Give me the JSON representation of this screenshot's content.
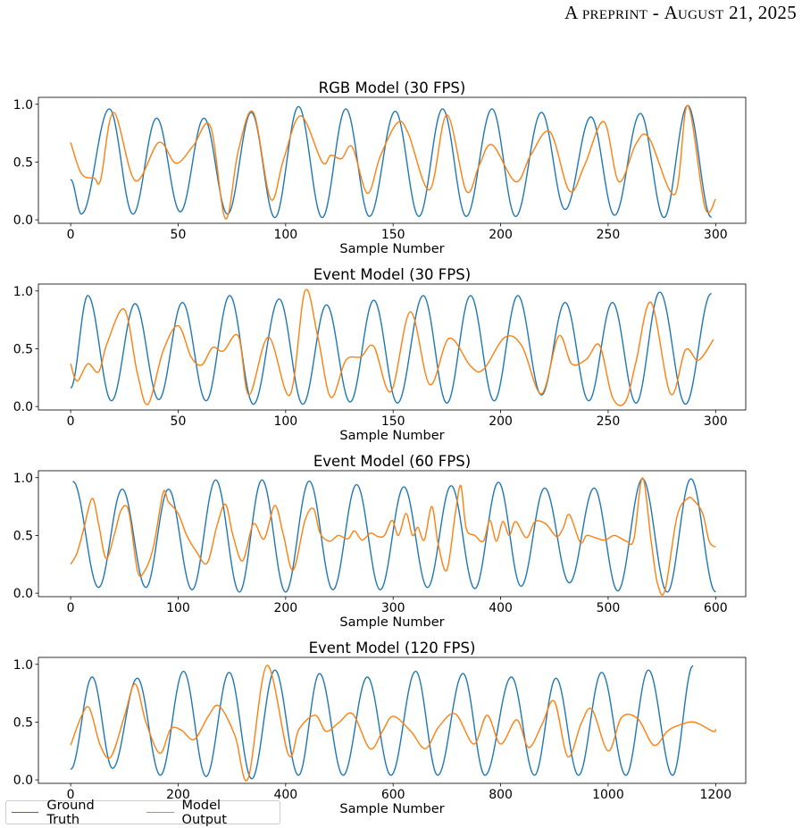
{
  "header": {
    "prefix": "A preprint",
    "separator": " - ",
    "date": "August 21, 2025"
  },
  "colors": {
    "ground_truth": "#1f77b4",
    "model_output": "#ff7f0e"
  },
  "legend": [
    {
      "name": "Ground Truth",
      "color": "#1f77b4"
    },
    {
      "name": "Model Output",
      "color": "#ff7f0e"
    }
  ],
  "chart_data": [
    {
      "type": "line",
      "title": "RGB Model (30 FPS)",
      "xlabel": "Sample Number",
      "xlim": [
        -15,
        314
      ],
      "ylim": [
        -0.03,
        1.06
      ],
      "xticks": [
        0,
        50,
        100,
        150,
        200,
        250,
        300
      ],
      "yticks": [
        0.0,
        0.5,
        1.0
      ],
      "series": [
        {
          "name": "Ground Truth",
          "peaks_x": [
            0,
            18,
            40,
            62,
            84,
            106,
            128,
            151,
            173,
            196,
            219,
            242,
            265,
            287
          ],
          "peaks_y": [
            0.35,
            0.96,
            0.88,
            0.88,
            0.93,
            0.98,
            0.96,
            0.94,
            0.96,
            0.96,
            0.93,
            0.89,
            0.92,
            0.99
          ],
          "troughs_x": [
            5,
            29,
            51,
            73,
            95,
            117,
            139,
            162,
            184,
            207,
            230,
            253,
            276,
            298
          ],
          "troughs_y": [
            0.05,
            0.05,
            0.07,
            0.05,
            0.02,
            0.02,
            0.03,
            0.03,
            0.03,
            0.03,
            0.09,
            0.04,
            0.02,
            0.02
          ]
        },
        {
          "name": "Model Output",
          "x": [
            0,
            5,
            11,
            14,
            20,
            30,
            41,
            49,
            57,
            65,
            72,
            78,
            85,
            93,
            99,
            107,
            117,
            121,
            126,
            131,
            138,
            144,
            152,
            157,
            167,
            175,
            184,
            190,
            196,
            207,
            214,
            223,
            232,
            239,
            248,
            255,
            263,
            269,
            281,
            287,
            295,
            300
          ],
          "y": [
            0.67,
            0.4,
            0.36,
            0.35,
            0.93,
            0.34,
            0.67,
            0.49,
            0.64,
            0.81,
            0.01,
            0.6,
            0.93,
            0.18,
            0.52,
            0.9,
            0.5,
            0.56,
            0.53,
            0.63,
            0.23,
            0.55,
            0.84,
            0.75,
            0.26,
            0.91,
            0.25,
            0.47,
            0.65,
            0.33,
            0.56,
            0.76,
            0.25,
            0.47,
            0.85,
            0.33,
            0.66,
            0.71,
            0.22,
            0.99,
            0.11,
            0.18
          ]
        }
      ]
    },
    {
      "type": "line",
      "title": "Event Model (30 FPS)",
      "xlabel": "Sample Number",
      "xlim": [
        -15,
        314
      ],
      "ylim": [
        -0.03,
        1.06
      ],
      "xticks": [
        0,
        50,
        100,
        150,
        200,
        250,
        300
      ],
      "yticks": [
        0.0,
        0.5,
        1.0
      ],
      "series": [
        {
          "name": "Ground Truth",
          "peaks_x": [
            8,
            30,
            52,
            74,
            97,
            119,
            141,
            164,
            186,
            208,
            230,
            252,
            274,
            298
          ],
          "peaks_y": [
            0.96,
            0.89,
            0.9,
            0.96,
            0.93,
            0.88,
            0.92,
            0.96,
            0.96,
            0.96,
            0.9,
            0.9,
            0.99,
            0.98
          ],
          "troughs_x": [
            0,
            19,
            41,
            63,
            85,
            108,
            130,
            152,
            175,
            197,
            219,
            241,
            263,
            286
          ],
          "troughs_y": [
            0.16,
            0.05,
            0.06,
            0.05,
            0.02,
            0.02,
            0.04,
            0.03,
            0.03,
            0.05,
            0.1,
            0.05,
            0.03,
            0.02
          ]
        },
        {
          "name": "Model Output",
          "x": [
            0,
            3,
            8,
            13,
            17,
            25,
            31,
            36,
            43,
            50,
            56,
            61,
            66,
            71,
            78,
            83,
            92,
            102,
            109,
            115,
            121,
            128,
            135,
            141,
            149,
            158,
            167,
            176,
            186,
            192,
            202,
            210,
            219,
            227,
            233,
            240,
            246,
            252,
            258,
            263,
            270,
            279,
            286,
            292,
            299
          ],
          "y": [
            0.37,
            0.22,
            0.37,
            0.3,
            0.55,
            0.84,
            0.29,
            0.02,
            0.48,
            0.7,
            0.43,
            0.36,
            0.51,
            0.48,
            0.61,
            0.1,
            0.6,
            0.1,
            1.0,
            0.6,
            0.08,
            0.4,
            0.43,
            0.52,
            0.13,
            0.82,
            0.19,
            0.59,
            0.35,
            0.32,
            0.6,
            0.52,
            0.11,
            0.61,
            0.37,
            0.41,
            0.53,
            0.08,
            0.04,
            0.39,
            0.9,
            0.11,
            0.49,
            0.4,
            0.58
          ]
        }
      ]
    },
    {
      "type": "line",
      "title": "Event Model (60 FPS)",
      "xlabel": "Sample Number",
      "xlim": [
        -30,
        628
      ],
      "ylim": [
        -0.03,
        1.06
      ],
      "xticks": [
        0,
        100,
        200,
        300,
        400,
        500,
        600
      ],
      "yticks": [
        0.0,
        0.5,
        1.0
      ],
      "series": [
        {
          "name": "Ground Truth",
          "peaks_x": [
            2,
            48,
            91,
            135,
            178,
            222,
            266,
            310,
            354,
            398,
            441,
            487,
            532,
            577
          ],
          "peaks_y": [
            0.97,
            0.9,
            0.9,
            0.98,
            0.98,
            0.97,
            0.94,
            0.92,
            0.93,
            0.96,
            0.91,
            0.91,
            0.99,
            0.99
          ],
          "troughs_x": [
            26,
            70,
            113,
            157,
            200,
            244,
            288,
            332,
            376,
            419,
            464,
            509,
            555,
            600
          ],
          "troughs_y": [
            0.05,
            0.05,
            0.03,
            0.01,
            0.01,
            0.03,
            0.03,
            0.05,
            0.04,
            0.06,
            0.09,
            0.02,
            0.01,
            0.01
          ]
        },
        {
          "name": "Model Output",
          "x": [
            0,
            6,
            12,
            20,
            26,
            33,
            41,
            47,
            54,
            62,
            68,
            77,
            86,
            91,
            100,
            108,
            117,
            127,
            136,
            144,
            151,
            160,
            170,
            180,
            190,
            198,
            207,
            218,
            226,
            232,
            241,
            249,
            258,
            264,
            271,
            279,
            286,
            292,
            299,
            305,
            312,
            318,
            323,
            329,
            336,
            342,
            350,
            358,
            363,
            368,
            376,
            384,
            390,
            396,
            402,
            408,
            414,
            424,
            432,
            442,
            452,
            458,
            464,
            474,
            480,
            488,
            497,
            506,
            517,
            524,
            532,
            540,
            546,
            553,
            564,
            574,
            580,
            588,
            594,
            600
          ],
          "y": [
            0.25,
            0.35,
            0.55,
            0.82,
            0.6,
            0.3,
            0.52,
            0.72,
            0.71,
            0.2,
            0.18,
            0.4,
            0.87,
            0.79,
            0.69,
            0.5,
            0.36,
            0.26,
            0.58,
            0.77,
            0.5,
            0.28,
            0.6,
            0.47,
            0.76,
            0.5,
            0.2,
            0.63,
            0.73,
            0.52,
            0.45,
            0.5,
            0.47,
            0.54,
            0.46,
            0.52,
            0.49,
            0.5,
            0.63,
            0.5,
            0.69,
            0.5,
            0.57,
            0.46,
            0.75,
            0.42,
            0.2,
            0.7,
            0.93,
            0.56,
            0.5,
            0.45,
            0.63,
            0.45,
            0.62,
            0.5,
            0.62,
            0.48,
            0.62,
            0.6,
            0.49,
            0.56,
            0.68,
            0.44,
            0.5,
            0.48,
            0.46,
            0.5,
            0.45,
            0.47,
            1.0,
            0.45,
            0.08,
            0.03,
            0.66,
            0.82,
            0.8,
            0.69,
            0.45,
            0.4
          ]
        }
      ]
    },
    {
      "type": "line",
      "title": "Event Model (120 FPS)",
      "xlabel": "Sample Number",
      "xlim": [
        -60,
        1256
      ],
      "ylim": [
        -0.03,
        1.06
      ],
      "xticks": [
        0,
        200,
        400,
        600,
        800,
        1000,
        1200
      ],
      "yticks": [
        0.0,
        0.5,
        1.0
      ],
      "series": [
        {
          "name": "Ground Truth",
          "peaks_x": [
            40,
            124,
            210,
            295,
            380,
            463,
            552,
            642,
            730,
            820,
            903,
            988,
            1075,
            1158
          ],
          "peaks_y": [
            0.89,
            0.88,
            0.94,
            0.93,
            0.95,
            0.92,
            0.89,
            0.94,
            0.92,
            0.89,
            0.88,
            0.93,
            0.95,
            0.99
          ],
          "troughs_x": [
            0,
            78,
            167,
            252,
            337,
            424,
            507,
            596,
            683,
            771,
            863,
            945,
            1033,
            1120
          ],
          "troughs_y": [
            0.09,
            0.1,
            0.04,
            0.03,
            0.01,
            0.04,
            0.04,
            0.04,
            0.04,
            0.04,
            0.04,
            0.04,
            0.04,
            0.04
          ]
        },
        {
          "name": "Model Output",
          "x": [
            0,
            20,
            35,
            55,
            75,
            100,
            120,
            140,
            166,
            186,
            206,
            230,
            256,
            276,
            306,
            330,
            365,
            405,
            425,
            455,
            475,
            500,
            525,
            557,
            580,
            600,
            633,
            660,
            685,
            716,
            750,
            775,
            800,
            830,
            852,
            877,
            900,
            925,
            950,
            970,
            1000,
            1025,
            1055,
            1085,
            1110,
            1130,
            1160,
            1195,
            1200
          ],
          "y": [
            0.3,
            0.55,
            0.62,
            0.3,
            0.2,
            0.55,
            0.83,
            0.5,
            0.23,
            0.44,
            0.43,
            0.35,
            0.55,
            0.64,
            0.38,
            0.01,
            0.99,
            0.22,
            0.44,
            0.56,
            0.42,
            0.5,
            0.57,
            0.27,
            0.42,
            0.55,
            0.42,
            0.27,
            0.46,
            0.57,
            0.31,
            0.56,
            0.31,
            0.52,
            0.28,
            0.48,
            0.68,
            0.2,
            0.49,
            0.61,
            0.25,
            0.54,
            0.53,
            0.3,
            0.42,
            0.47,
            0.5,
            0.42,
            0.44
          ]
        }
      ]
    }
  ]
}
